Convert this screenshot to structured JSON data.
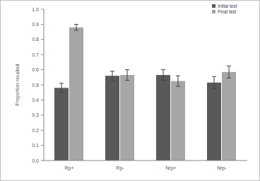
{
  "chart_data": {
    "type": "bar",
    "y_label": "Proportion recalled",
    "categories": [
      "Rp+",
      "Rp-",
      "Nrp+",
      "Nrp-"
    ],
    "series": [
      {
        "name": "Initial test",
        "color": "#595959",
        "values": [
          0.48,
          0.56,
          0.565,
          0.515
        ],
        "errors": [
          0.03,
          0.03,
          0.035,
          0.04
        ]
      },
      {
        "name": "Final test",
        "color": "#a6a6a6",
        "values": [
          0.88,
          0.565,
          0.525,
          0.585
        ],
        "errors": [
          0.02,
          0.035,
          0.035,
          0.04
        ]
      }
    ],
    "ylim": [
      0,
      1
    ],
    "yticks": [
      {
        "value": 0,
        "label": "0.0"
      },
      {
        "value": 0.1,
        "label": "0.1"
      },
      {
        "value": 0.2,
        "label": "0.2"
      },
      {
        "value": 0.3,
        "label": "0.3"
      },
      {
        "value": 0.4,
        "label": "0.4"
      },
      {
        "value": 0.5,
        "label": "0.5"
      },
      {
        "value": 0.6,
        "label": "0.6"
      },
      {
        "value": 0.7,
        "label": "0.7"
      },
      {
        "value": 0.8,
        "label": "0.8"
      },
      {
        "value": 0.9,
        "label": "0.9"
      },
      {
        "value": 1,
        "label": "1.0"
      }
    ],
    "grid": false,
    "legend": "top-right"
  }
}
